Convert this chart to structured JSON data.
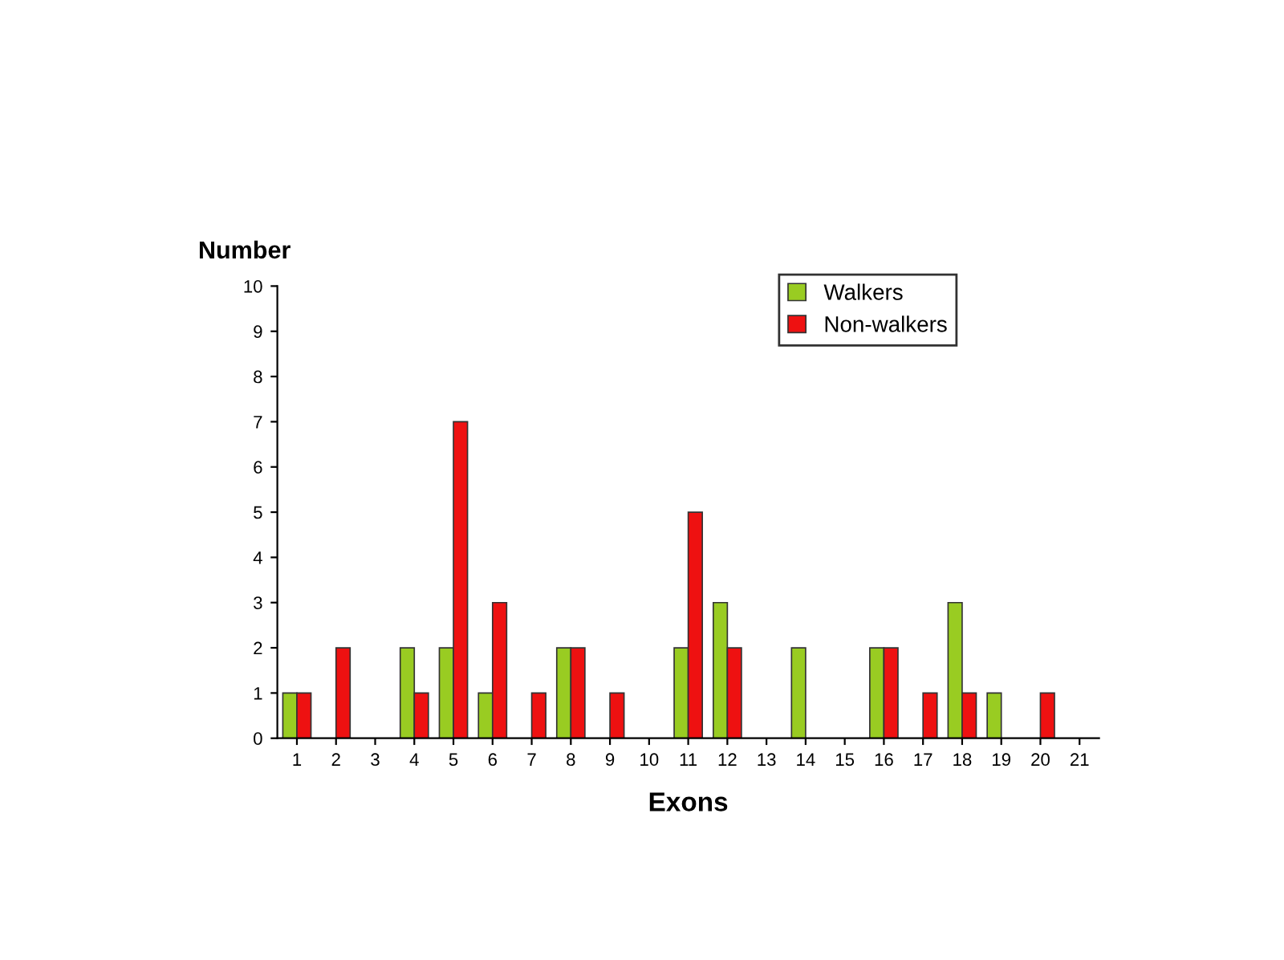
{
  "chart_data": {
    "type": "bar",
    "xlabel": "Exons",
    "ylabel": "Number",
    "categories": [
      "1",
      "2",
      "3",
      "4",
      "5",
      "6",
      "7",
      "8",
      "9",
      "10",
      "11",
      "12",
      "13",
      "14",
      "15",
      "16",
      "17",
      "18",
      "19",
      "20",
      "21"
    ],
    "series": [
      {
        "name": "Walkers",
        "color": "#99cc22",
        "values": [
          1,
          0,
          0,
          2,
          2,
          1,
          0,
          2,
          0,
          0,
          2,
          3,
          0,
          2,
          0,
          2,
          0,
          3,
          1,
          0,
          0
        ]
      },
      {
        "name": "Non-walkers",
        "color": "#ee1111",
        "values": [
          1,
          2,
          0,
          1,
          7,
          3,
          1,
          2,
          1,
          0,
          5,
          2,
          0,
          0,
          0,
          2,
          1,
          1,
          0,
          1,
          0
        ]
      }
    ],
    "ylim": [
      0,
      10
    ],
    "yticks": [
      0,
      1,
      2,
      3,
      4,
      5,
      6,
      7,
      8,
      9,
      10
    ],
    "grid": false,
    "legend": "top right"
  }
}
